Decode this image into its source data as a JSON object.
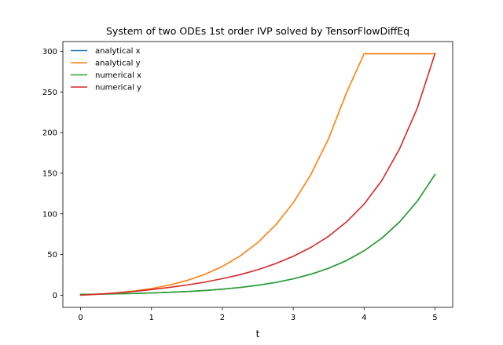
{
  "chart_data": {
    "type": "line",
    "title": "System of two ODEs 1st order IVP solved by TensorFlowDiffEq",
    "xlabel": "t",
    "ylabel": "",
    "xlim": [
      -0.25,
      5.25
    ],
    "ylim": [
      -15.0,
      312.0
    ],
    "xticks": [
      0,
      1,
      2,
      3,
      4,
      5
    ],
    "xtick_labels": [
      "0",
      "1",
      "2",
      "3",
      "4",
      "5"
    ],
    "yticks": [
      0,
      50,
      100,
      150,
      200,
      250,
      300
    ],
    "ytick_labels": [
      "0",
      "50",
      "100",
      "150",
      "200",
      "250",
      "300"
    ],
    "grid": false,
    "legend_position": "upper-left",
    "x": [
      0,
      0.25,
      0.5,
      0.75,
      1.0,
      1.25,
      1.5,
      1.75,
      2.0,
      2.25,
      2.5,
      2.75,
      3.0,
      3.25,
      3.5,
      3.75,
      4.0,
      4.25,
      4.5,
      4.75,
      5.0
    ],
    "series": [
      {
        "name": "analytical x",
        "color": "#1f77b4",
        "values": [
          1.0,
          1.28,
          1.65,
          2.12,
          2.72,
          3.49,
          4.48,
          5.75,
          7.39,
          9.49,
          12.18,
          15.64,
          20.09,
          25.79,
          33.12,
          42.52,
          54.6,
          70.11,
          90.02,
          115.58,
          148.4
        ]
      },
      {
        "name": "analytical y",
        "color": "#ff7f0e",
        "values": [
          0.0,
          1.11,
          2.75,
          5.03,
          8.15,
          12.35,
          17.99,
          25.47,
          35.3,
          48.15,
          64.79,
          86.2,
          113.59,
          148.48,
          192.75,
          248.73,
          297.0,
          297.0,
          297.0,
          297.0,
          297.0
        ]
      },
      {
        "name": "numerical x",
        "color": "#2ca02c",
        "values": [
          1.0,
          1.28,
          1.65,
          2.12,
          2.72,
          3.49,
          4.48,
          5.75,
          7.39,
          9.49,
          12.18,
          15.64,
          20.09,
          25.79,
          33.12,
          42.52,
          54.6,
          70.11,
          90.02,
          115.58,
          148.4
        ]
      },
      {
        "name": "numerical y",
        "color": "#d62728",
        "values": [
          0.0,
          1.2,
          2.7,
          4.6,
          6.9,
          9.5,
          12.5,
          16.0,
          20.3,
          25.2,
          31.3,
          38.8,
          47.8,
          58.8,
          72.5,
          90.0,
          112.0,
          141.0,
          180.0,
          230.0,
          297.0
        ]
      }
    ]
  }
}
